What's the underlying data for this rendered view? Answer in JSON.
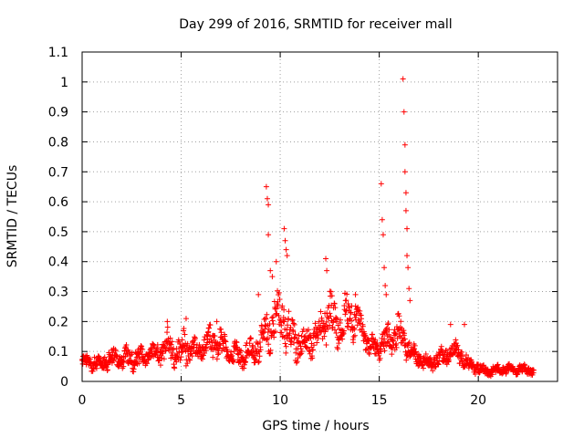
{
  "chart_data": {
    "type": "scatter",
    "title": "Day 299 of 2016, SRMTID for receiver mall",
    "xlabel": "GPS time / hours",
    "ylabel": "SRMTID / TECUs",
    "xlim": [
      0,
      24
    ],
    "ylim": [
      0,
      1.1
    ],
    "grid": true,
    "marker": "+",
    "colors": {
      "series": "#ff0000",
      "axis": "#000000",
      "grid": "#a0a0a0"
    },
    "xticks": [
      {
        "value": 0,
        "label": "0"
      },
      {
        "value": 5,
        "label": "5"
      },
      {
        "value": 10,
        "label": "10"
      },
      {
        "value": 15,
        "label": "15"
      },
      {
        "value": 20,
        "label": "20"
      }
    ],
    "yticks": [
      {
        "value": 0,
        "label": "0"
      },
      {
        "value": 0.1,
        "label": "0.1"
      },
      {
        "value": 0.2,
        "label": "0.2"
      },
      {
        "value": 0.3,
        "label": "0.3"
      },
      {
        "value": 0.4,
        "label": "0.4"
      },
      {
        "value": 0.5,
        "label": "0.5"
      },
      {
        "value": 0.6,
        "label": "0.6"
      },
      {
        "value": 0.7,
        "label": "0.7"
      },
      {
        "value": 0.8,
        "label": "0.8"
      },
      {
        "value": 0.9,
        "label": "0.9"
      },
      {
        "value": 1,
        "label": "1"
      },
      {
        "value": 1.1,
        "label": "1.1"
      }
    ],
    "series": [
      {
        "name": "SRMTID",
        "envelope": [
          {
            "x": 0,
            "lo": 0.04,
            "hi": 0.09
          },
          {
            "x": 0.5,
            "lo": 0.03,
            "hi": 0.1
          },
          {
            "x": 1,
            "lo": 0.03,
            "hi": 0.09
          },
          {
            "x": 1.5,
            "lo": 0.04,
            "hi": 0.12
          },
          {
            "x": 2,
            "lo": 0.04,
            "hi": 0.11
          },
          {
            "x": 2.5,
            "lo": 0.03,
            "hi": 0.14
          },
          {
            "x": 3,
            "lo": 0.04,
            "hi": 0.12
          },
          {
            "x": 3.5,
            "lo": 0.05,
            "hi": 0.13
          },
          {
            "x": 4,
            "lo": 0.05,
            "hi": 0.14
          },
          {
            "x": 4.3,
            "lo": 0.06,
            "hi": 0.2
          },
          {
            "x": 4.7,
            "lo": 0.04,
            "hi": 0.13
          },
          {
            "x": 5,
            "lo": 0.04,
            "hi": 0.16
          },
          {
            "x": 5.2,
            "lo": 0.05,
            "hi": 0.21
          },
          {
            "x": 5.5,
            "lo": 0.05,
            "hi": 0.15
          },
          {
            "x": 6,
            "lo": 0.06,
            "hi": 0.16
          },
          {
            "x": 6.5,
            "lo": 0.07,
            "hi": 0.2
          },
          {
            "x": 7,
            "lo": 0.06,
            "hi": 0.18
          },
          {
            "x": 7.5,
            "lo": 0.05,
            "hi": 0.14
          },
          {
            "x": 8,
            "lo": 0.04,
            "hi": 0.13
          },
          {
            "x": 8.5,
            "lo": 0.05,
            "hi": 0.15
          },
          {
            "x": 9,
            "lo": 0.06,
            "hi": 0.17
          },
          {
            "x": 9.5,
            "lo": 0.09,
            "hi": 0.33
          },
          {
            "x": 10,
            "lo": 0.1,
            "hi": 0.35
          },
          {
            "x": 10.5,
            "lo": 0.08,
            "hi": 0.25
          },
          {
            "x": 11,
            "lo": 0.05,
            "hi": 0.2
          },
          {
            "x": 11.5,
            "lo": 0.07,
            "hi": 0.2
          },
          {
            "x": 12,
            "lo": 0.1,
            "hi": 0.24
          },
          {
            "x": 12.5,
            "lo": 0.09,
            "hi": 0.34
          },
          {
            "x": 13,
            "lo": 0.1,
            "hi": 0.26
          },
          {
            "x": 13.5,
            "lo": 0.12,
            "hi": 0.33
          },
          {
            "x": 14,
            "lo": 0.14,
            "hi": 0.25
          },
          {
            "x": 14.5,
            "lo": 0.08,
            "hi": 0.16
          },
          {
            "x": 15,
            "lo": 0.07,
            "hi": 0.16
          },
          {
            "x": 15.5,
            "lo": 0.08,
            "hi": 0.2
          },
          {
            "x": 16,
            "lo": 0.1,
            "hi": 0.24
          },
          {
            "x": 16.5,
            "lo": 0.06,
            "hi": 0.15
          },
          {
            "x": 17,
            "lo": 0.04,
            "hi": 0.11
          },
          {
            "x": 17.5,
            "lo": 0.03,
            "hi": 0.09
          },
          {
            "x": 18,
            "lo": 0.04,
            "hi": 0.11
          },
          {
            "x": 18.5,
            "lo": 0.05,
            "hi": 0.14
          },
          {
            "x": 19,
            "lo": 0.06,
            "hi": 0.14
          },
          {
            "x": 19.5,
            "lo": 0.03,
            "hi": 0.08
          },
          {
            "x": 20,
            "lo": 0.02,
            "hi": 0.07
          },
          {
            "x": 20.5,
            "lo": 0.01,
            "hi": 0.05
          },
          {
            "x": 21,
            "lo": 0.02,
            "hi": 0.06
          },
          {
            "x": 21.5,
            "lo": 0.02,
            "hi": 0.06
          },
          {
            "x": 22,
            "lo": 0.02,
            "hi": 0.06
          },
          {
            "x": 22.5,
            "lo": 0.02,
            "hi": 0.06
          },
          {
            "x": 22.8,
            "lo": 0.02,
            "hi": 0.05
          }
        ],
        "spikes": [
          {
            "x": 8.9,
            "y": 0.29
          },
          {
            "x": 9.3,
            "y": 0.65
          },
          {
            "x": 9.35,
            "y": 0.61
          },
          {
            "x": 9.4,
            "y": 0.59
          },
          {
            "x": 9.4,
            "y": 0.49
          },
          {
            "x": 9.5,
            "y": 0.37
          },
          {
            "x": 9.6,
            "y": 0.35
          },
          {
            "x": 9.8,
            "y": 0.4
          },
          {
            "x": 10.2,
            "y": 0.51
          },
          {
            "x": 10.25,
            "y": 0.47
          },
          {
            "x": 10.3,
            "y": 0.44
          },
          {
            "x": 10.35,
            "y": 0.42
          },
          {
            "x": 12.3,
            "y": 0.41
          },
          {
            "x": 12.35,
            "y": 0.37
          },
          {
            "x": 13.8,
            "y": 0.29
          },
          {
            "x": 15.1,
            "y": 0.66
          },
          {
            "x": 15.15,
            "y": 0.54
          },
          {
            "x": 15.2,
            "y": 0.49
          },
          {
            "x": 15.25,
            "y": 0.38
          },
          {
            "x": 15.3,
            "y": 0.32
          },
          {
            "x": 15.35,
            "y": 0.29
          },
          {
            "x": 16.2,
            "y": 1.01
          },
          {
            "x": 16.25,
            "y": 0.9
          },
          {
            "x": 16.3,
            "y": 0.79
          },
          {
            "x": 16.3,
            "y": 0.7
          },
          {
            "x": 16.35,
            "y": 0.63
          },
          {
            "x": 16.35,
            "y": 0.57
          },
          {
            "x": 16.4,
            "y": 0.51
          },
          {
            "x": 16.4,
            "y": 0.42
          },
          {
            "x": 16.45,
            "y": 0.38
          },
          {
            "x": 16.5,
            "y": 0.31
          },
          {
            "x": 16.55,
            "y": 0.27
          },
          {
            "x": 18.6,
            "y": 0.19
          },
          {
            "x": 19.3,
            "y": 0.19
          },
          {
            "x": 4.3,
            "y": 0.2
          },
          {
            "x": 5.25,
            "y": 0.21
          },
          {
            "x": 6.8,
            "y": 0.2
          }
        ]
      }
    ]
  }
}
